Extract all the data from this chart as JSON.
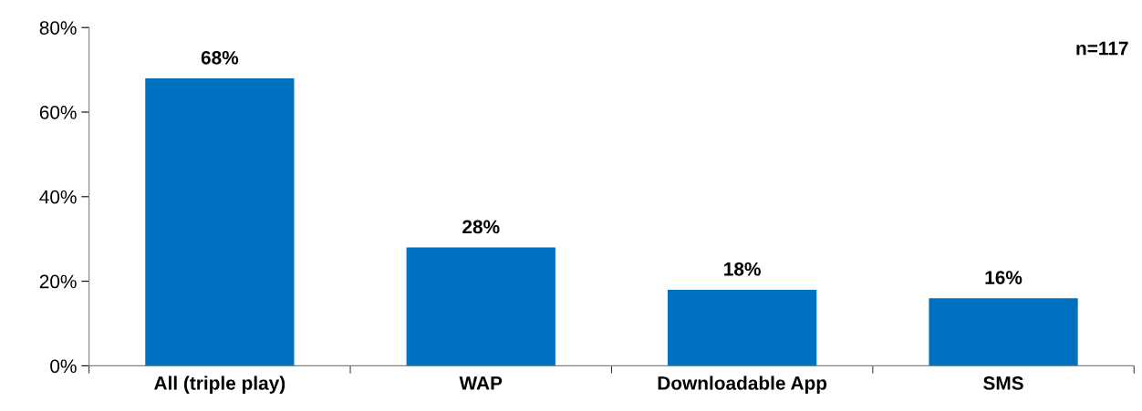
{
  "chart_data": {
    "type": "bar",
    "categories": [
      "All (triple play)",
      "WAP",
      "Downloadable App",
      "SMS"
    ],
    "series": [
      {
        "color": "#0070c0",
        "values": [
          68,
          28,
          18,
          16
        ],
        "value_labels": [
          "68%",
          "28%",
          "18%",
          "16%"
        ]
      }
    ],
    "ylim": [
      0,
      80
    ],
    "yticks": [
      {
        "value": 0,
        "label": "0%"
      },
      {
        "value": 20,
        "label": "20%"
      },
      {
        "value": 40,
        "label": "40%"
      },
      {
        "value": 60,
        "label": "60%"
      },
      {
        "value": 80,
        "label": "80%"
      }
    ],
    "grid": false,
    "legend": false,
    "annotations": [
      "n=117"
    ]
  }
}
